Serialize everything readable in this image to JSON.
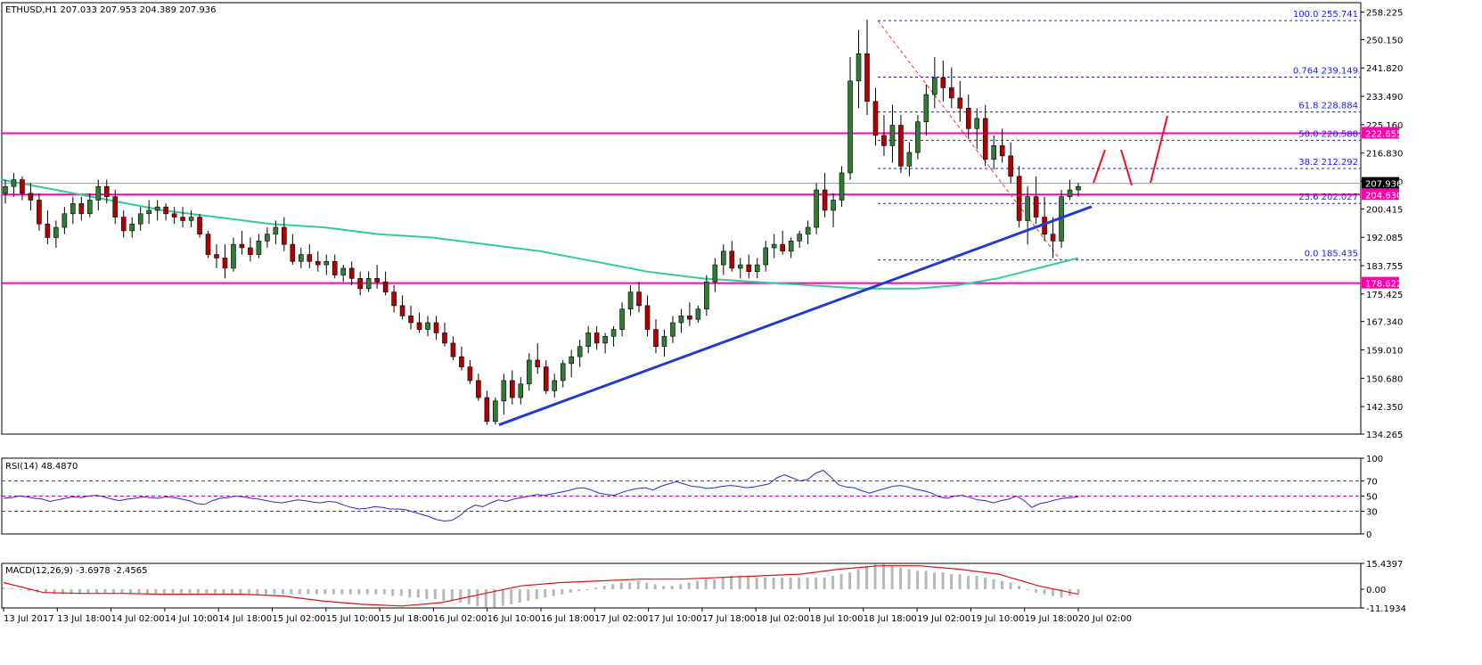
{
  "chart_data": [
    {
      "type": "candlestick",
      "title": "ETHUSD,H1  207.033 207.953 204.389 207.936",
      "ohlc_sample": {
        "symbol": "ETHUSD,H1",
        "open": 207.033,
        "high": 207.953,
        "low": 204.389,
        "close": 207.936
      },
      "ylim": [
        134.265,
        261
      ],
      "yticks": [
        "258.225",
        "250.150",
        "241.820",
        "233.490",
        "225.160",
        "216.830",
        "208.500",
        "200.415",
        "192.085",
        "183.755",
        "175.425",
        "167.340",
        "159.010",
        "150.680",
        "142.350",
        "134.265"
      ],
      "current_price": "207.936",
      "horizontal_levels": [
        {
          "value": 222.655,
          "label": "222.655",
          "color": "#ff00aa"
        },
        {
          "value": 204.63,
          "label": "204.630",
          "color": "#ff00aa"
        },
        {
          "value": 178.622,
          "label": "178.622",
          "color": "#ff00aa"
        }
      ],
      "fibonacci": [
        {
          "ratio": "100.0",
          "price": "255.741",
          "value": 255.741
        },
        {
          "ratio": "0.764",
          "price": "239.149",
          "value": 239.149
        },
        {
          "ratio": "61.8",
          "price": "228.884",
          "value": 228.884
        },
        {
          "ratio": "50.0",
          "price": "220.588",
          "value": 220.588
        },
        {
          "ratio": "38.2",
          "price": "212.292",
          "value": 212.292
        },
        {
          "ratio": "23.6",
          "price": "202.027",
          "value": 202.027
        },
        {
          "ratio": "0.0",
          "price": "185.435",
          "value": 185.435
        }
      ],
      "candles": [
        [
          205,
          209,
          202,
          207
        ],
        [
          207,
          211,
          204,
          209
        ],
        [
          209,
          210,
          203,
          205
        ],
        [
          205,
          208,
          200,
          203
        ],
        [
          203,
          205,
          194,
          196
        ],
        [
          196,
          200,
          190,
          192
        ],
        [
          192,
          197,
          189,
          195
        ],
        [
          195,
          201,
          193,
          199
        ],
        [
          199,
          204,
          196,
          202
        ],
        [
          202,
          204,
          197,
          199
        ],
        [
          199,
          205,
          198,
          203
        ],
        [
          203,
          209,
          200,
          207
        ],
        [
          207,
          209,
          202,
          204
        ],
        [
          204,
          206,
          196,
          198
        ],
        [
          198,
          200,
          192,
          194
        ],
        [
          194,
          198,
          192,
          196
        ],
        [
          196,
          201,
          194,
          199
        ],
        [
          199,
          203,
          196,
          200
        ],
        [
          200,
          203,
          197,
          201
        ],
        [
          201,
          202,
          197,
          199
        ],
        [
          199,
          201,
          196,
          198
        ],
        [
          198,
          201,
          195,
          197
        ],
        [
          197,
          200,
          195,
          198
        ],
        [
          198,
          199,
          192,
          193
        ],
        [
          193,
          194,
          186,
          187
        ],
        [
          187,
          190,
          183,
          186
        ],
        [
          186,
          190,
          180,
          183
        ],
        [
          183,
          192,
          182,
          190
        ],
        [
          190,
          194,
          187,
          189
        ],
        [
          189,
          192,
          185,
          187
        ],
        [
          187,
          193,
          186,
          191
        ],
        [
          191,
          195,
          189,
          193
        ],
        [
          193,
          197,
          190,
          195
        ],
        [
          195,
          198,
          188,
          190
        ],
        [
          190,
          193,
          184,
          185
        ],
        [
          185,
          189,
          183,
          187
        ],
        [
          187,
          190,
          183,
          185
        ],
        [
          185,
          188,
          182,
          184
        ],
        [
          184,
          187,
          181,
          185
        ],
        [
          185,
          187,
          180,
          181
        ],
        [
          181,
          184,
          179,
          183
        ],
        [
          183,
          185,
          178,
          180
        ],
        [
          180,
          182,
          175,
          177
        ],
        [
          177,
          182,
          176,
          180
        ],
        [
          180,
          184,
          177,
          179
        ],
        [
          179,
          182,
          175,
          176
        ],
        [
          176,
          178,
          170,
          172
        ],
        [
          172,
          175,
          168,
          169
        ],
        [
          169,
          172,
          165,
          167
        ],
        [
          167,
          170,
          164,
          165
        ],
        [
          165,
          169,
          163,
          167
        ],
        [
          167,
          169,
          162,
          164
        ],
        [
          164,
          167,
          160,
          161
        ],
        [
          161,
          163,
          156,
          157
        ],
        [
          157,
          160,
          153,
          154
        ],
        [
          154,
          156,
          149,
          150
        ],
        [
          150,
          152,
          144,
          145
        ],
        [
          145,
          147,
          137,
          138
        ],
        [
          138,
          145,
          137,
          144
        ],
        [
          144,
          152,
          140,
          150
        ],
        [
          150,
          153,
          143,
          145
        ],
        [
          145,
          151,
          143,
          149
        ],
        [
          149,
          158,
          147,
          156
        ],
        [
          156,
          161,
          152,
          154
        ],
        [
          154,
          156,
          146,
          147
        ],
        [
          147,
          152,
          145,
          150
        ],
        [
          150,
          156,
          148,
          155
        ],
        [
          155,
          159,
          151,
          157
        ],
        [
          157,
          162,
          154,
          160
        ],
        [
          160,
          166,
          158,
          164
        ],
        [
          164,
          166,
          159,
          161
        ],
        [
          161,
          164,
          158,
          163
        ],
        [
          163,
          166,
          160,
          165
        ],
        [
          165,
          173,
          163,
          171
        ],
        [
          171,
          178,
          169,
          176
        ],
        [
          176,
          179,
          170,
          172
        ],
        [
          172,
          175,
          163,
          165
        ],
        [
          165,
          168,
          158,
          160
        ],
        [
          160,
          165,
          157,
          163
        ],
        [
          163,
          169,
          161,
          167
        ],
        [
          167,
          171,
          164,
          169
        ],
        [
          169,
          173,
          166,
          168
        ],
        [
          168,
          172,
          167,
          171
        ],
        [
          171,
          181,
          169,
          179
        ],
        [
          179,
          186,
          176,
          184
        ],
        [
          184,
          190,
          181,
          188
        ],
        [
          188,
          191,
          182,
          183
        ],
        [
          183,
          186,
          180,
          184
        ],
        [
          184,
          187,
          180,
          182
        ],
        [
          182,
          186,
          180,
          184
        ],
        [
          184,
          191,
          182,
          189
        ],
        [
          189,
          193,
          186,
          190
        ],
        [
          190,
          194,
          187,
          188
        ],
        [
          188,
          192,
          186,
          191
        ],
        [
          191,
          194,
          189,
          193
        ],
        [
          193,
          197,
          190,
          195
        ],
        [
          195,
          208,
          193,
          206
        ],
        [
          206,
          211,
          198,
          200
        ],
        [
          200,
          205,
          195,
          203
        ],
        [
          203,
          213,
          201,
          211
        ],
        [
          211,
          245,
          209,
          238
        ],
        [
          238,
          253,
          230,
          246
        ],
        [
          246,
          256,
          228,
          232
        ],
        [
          232,
          236,
          219,
          222
        ],
        [
          222,
          228,
          216,
          219
        ],
        [
          219,
          231,
          214,
          225
        ],
        [
          225,
          228,
          211,
          213
        ],
        [
          213,
          220,
          210,
          217
        ],
        [
          217,
          228,
          215,
          226
        ],
        [
          226,
          237,
          222,
          234
        ],
        [
          234,
          245,
          230,
          239
        ],
        [
          239,
          244,
          232,
          236
        ],
        [
          236,
          242,
          230,
          233
        ],
        [
          233,
          238,
          226,
          230
        ],
        [
          230,
          234,
          221,
          224
        ],
        [
          224,
          230,
          218,
          227
        ],
        [
          227,
          231,
          213,
          215
        ],
        [
          215,
          222,
          212,
          219
        ],
        [
          219,
          224,
          214,
          216
        ],
        [
          216,
          220,
          208,
          210
        ],
        [
          210,
          213,
          195,
          197
        ],
        [
          197,
          207,
          190,
          204
        ],
        [
          204,
          210,
          196,
          198
        ],
        [
          198,
          204,
          191,
          193
        ],
        [
          193,
          198,
          186,
          191
        ],
        [
          191,
          206,
          189,
          204
        ],
        [
          204,
          209,
          203,
          206
        ],
        [
          206,
          208,
          204,
          207
        ]
      ],
      "moving_average": [
        [
          0,
          209
        ],
        [
          20,
          206
        ],
        [
          40,
          203
        ],
        [
          60,
          200
        ],
        [
          80,
          198
        ],
        [
          100,
          196
        ],
        [
          120,
          195
        ],
        [
          140,
          193
        ],
        [
          160,
          192
        ],
        [
          180,
          190
        ],
        [
          200,
          188
        ],
        [
          220,
          185
        ],
        [
          240,
          182
        ],
        [
          260,
          180
        ],
        [
          280,
          179
        ],
        [
          300,
          178
        ],
        [
          320,
          177
        ],
        [
          340,
          177
        ],
        [
          355,
          178
        ],
        [
          370,
          180
        ],
        [
          385,
          183
        ],
        [
          400,
          186
        ]
      ],
      "trendline": {
        "from": [
          185,
          137
        ],
        "to": [
          405,
          210
        ]
      },
      "fib_line": {
        "from": [
          327,
          255.7
        ],
        "to": [
          395,
          185.4
        ]
      },
      "projection": [
        [
          406,
          207
        ],
        [
          411,
          214
        ],
        [
          415,
          214
        ],
        [
          420,
          206
        ],
        [
          425,
          206
        ],
        [
          432,
          228
        ]
      ]
    },
    {
      "type": "line",
      "title": "RSI(14) 48.4870",
      "ylim": [
        0,
        100
      ],
      "yticks": [
        "100",
        "70",
        "50",
        "30",
        "0"
      ],
      "levels": [
        70,
        50,
        30
      ],
      "values": [
        47,
        48,
        50,
        49,
        47,
        46,
        43,
        45,
        47,
        49,
        48,
        50,
        51,
        49,
        46,
        44,
        46,
        47,
        49,
        48,
        47,
        49,
        48,
        46,
        44,
        40,
        39,
        44,
        47,
        48,
        50,
        49,
        47,
        46,
        44,
        42,
        41,
        43,
        45,
        44,
        42,
        41,
        43,
        42,
        38,
        35,
        33,
        34,
        36,
        35,
        33,
        33,
        32,
        29,
        26,
        23,
        19,
        17,
        18,
        24,
        33,
        38,
        36,
        41,
        45,
        43,
        46,
        48,
        50,
        52,
        51,
        53,
        55,
        57,
        60,
        61,
        58,
        54,
        52,
        51,
        55,
        58,
        60,
        61,
        58,
        63,
        66,
        69,
        66,
        63,
        62,
        60,
        61,
        63,
        64,
        63,
        61,
        62,
        64,
        66,
        74,
        78,
        74,
        70,
        72,
        80,
        84,
        75,
        65,
        62,
        61,
        57,
        54,
        57,
        60,
        63,
        64,
        62,
        59,
        57,
        54,
        49,
        47,
        50,
        51,
        48,
        45,
        44,
        41,
        44,
        46,
        50,
        44,
        35,
        40,
        42,
        45,
        47,
        48,
        49
      ]
    },
    {
      "type": "histogram+line",
      "title": "MACD(12,26,9) -3.6978 -2.4565",
      "ylim": [
        -11.1934,
        15.4397
      ],
      "yticks": [
        "15.4397",
        "0.00",
        "-11.1934"
      ],
      "histogram": [
        1,
        0.5,
        0,
        -1,
        -2,
        -2.5,
        -3,
        -3,
        -3,
        -3,
        -2.5,
        -2.5,
        -2.5,
        -2.5,
        -2.5,
        -2.5,
        -2.5,
        -2.5,
        -2.5,
        -2.5,
        -2.5,
        -2.5,
        -2.5,
        -2.5,
        -2.5,
        -2.5,
        -3,
        -3,
        -3,
        -3,
        -3,
        -3,
        -3,
        -3,
        -3,
        -3,
        -3,
        -3,
        -3,
        -3,
        -3,
        -3,
        -3,
        -3,
        -3,
        -3,
        -4,
        -4,
        -5,
        -5,
        -6,
        -6,
        -7,
        -7,
        -8,
        -9,
        -10,
        -11,
        -11,
        -10,
        -9,
        -8,
        -7,
        -6,
        -5,
        -4,
        -3,
        -2,
        -1,
        0,
        1,
        2,
        3,
        4,
        4,
        5,
        4,
        3,
        2,
        2,
        3,
        4,
        5,
        6,
        6,
        7,
        8,
        8,
        8,
        7,
        7,
        7,
        7,
        7,
        7,
        7,
        7,
        7,
        8,
        9,
        10,
        12,
        14,
        15,
        15,
        14,
        13,
        12,
        11,
        11,
        10,
        10,
        9,
        9,
        8,
        8,
        7,
        6,
        5,
        4,
        2,
        0,
        -2,
        -3,
        -4,
        -5,
        -4,
        -3
      ],
      "signal": [
        [
          0,
          4
        ],
        [
          20,
          -2
        ],
        [
          40,
          -2.5
        ],
        [
          60,
          -2.5
        ],
        [
          80,
          -3
        ],
        [
          100,
          -3
        ],
        [
          120,
          -3
        ],
        [
          140,
          -4
        ],
        [
          160,
          -7
        ],
        [
          180,
          -9
        ],
        [
          200,
          -10
        ],
        [
          220,
          -8
        ],
        [
          240,
          -3
        ],
        [
          260,
          2
        ],
        [
          280,
          4
        ],
        [
          300,
          5
        ],
        [
          320,
          6
        ],
        [
          340,
          6
        ],
        [
          360,
          7
        ],
        [
          380,
          8
        ],
        [
          400,
          9
        ],
        [
          420,
          12
        ],
        [
          440,
          14
        ],
        [
          460,
          14
        ],
        [
          480,
          12
        ],
        [
          500,
          9
        ],
        [
          520,
          2
        ],
        [
          540,
          -3
        ]
      ]
    }
  ],
  "time_axis": [
    "13 Jul 2017",
    "13 Jul 18:00",
    "14 Jul 02:00",
    "14 Jul 10:00",
    "14 Jul 18:00",
    "15 Jul 02:00",
    "15 Jul 10:00",
    "15 Jul 18:00",
    "16 Jul 02:00",
    "16 Jul 10:00",
    "16 Jul 18:00",
    "17 Jul 02:00",
    "17 Jul 10:00",
    "17 Jul 18:00",
    "18 Jul 02:00",
    "18 Jul 10:00",
    "18 Jul 18:00",
    "19 Jul 02:00",
    "19 Jul 10:00",
    "19 Jul 18:00",
    "20 Jul 02:00"
  ],
  "colors": {
    "bull": "#2e7d32",
    "bear": "#b00000",
    "ma": "#33cc99",
    "trend": "#1f3bd6",
    "level": "#ff00aa",
    "fib": "#1a1aff",
    "rsi": "#2a2acc",
    "macd_hist": "#b8b8b8",
    "macd_signal": "#e01010",
    "projection": "#ee1122"
  }
}
